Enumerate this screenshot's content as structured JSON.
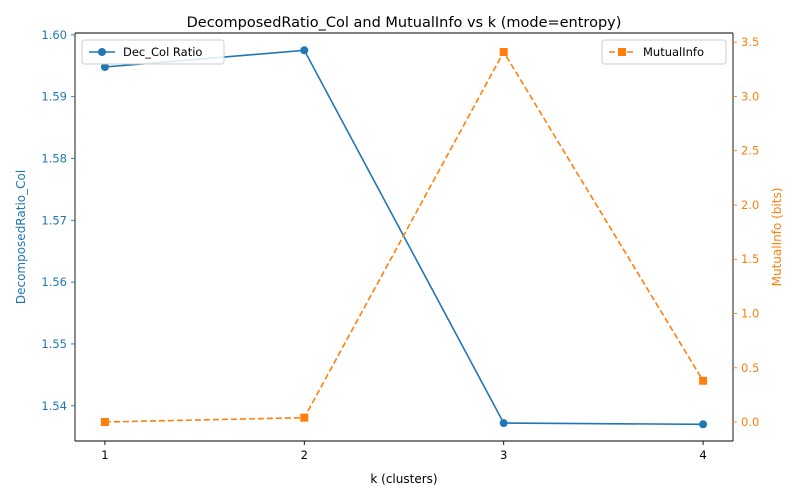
{
  "chart_data": {
    "type": "line",
    "title": "DecomposedRatio_Col and MutualInfo vs k (mode=entropy)",
    "xlabel": "k (clusters)",
    "x": [
      1,
      2,
      3,
      4
    ],
    "x_ticks": [
      1,
      2,
      3,
      4
    ],
    "xlim": [
      0.85,
      4.15
    ],
    "left_axis": {
      "label": "DecomposedRatio_Col",
      "color": "#1f77b4",
      "ylim": [
        1.5343,
        1.6003
      ],
      "ticks": [
        1.54,
        1.55,
        1.56,
        1.57,
        1.58,
        1.59,
        1.6
      ],
      "tick_labels": [
        "1.54",
        "1.55",
        "1.56",
        "1.57",
        "1.58",
        "1.59",
        "1.60"
      ]
    },
    "right_axis": {
      "label": "MutualInfo (bits)",
      "color": "#ff7f0e",
      "ylim": [
        -0.175,
        3.585
      ],
      "ticks": [
        0.0,
        0.5,
        1.0,
        1.5,
        2.0,
        2.5,
        3.0,
        3.5
      ],
      "tick_labels": [
        "0.0",
        "0.5",
        "1.0",
        "1.5",
        "2.0",
        "2.5",
        "3.0",
        "3.5"
      ]
    },
    "series": [
      {
        "name": "Dec_Col Ratio",
        "axis": "left",
        "color": "#1f77b4",
        "marker": "circle",
        "linestyle": "solid",
        "values": [
          1.5948,
          1.5975,
          1.5372,
          1.537
        ]
      },
      {
        "name": "MutualInfo",
        "axis": "right",
        "color": "#ff7f0e",
        "marker": "square",
        "linestyle": "dashed",
        "values": [
          0.0,
          0.04,
          3.41,
          0.38
        ]
      }
    ],
    "legends": [
      {
        "series": "Dec_Col Ratio",
        "placement": "upper-left"
      },
      {
        "series": "MutualInfo",
        "placement": "upper-right"
      }
    ]
  }
}
